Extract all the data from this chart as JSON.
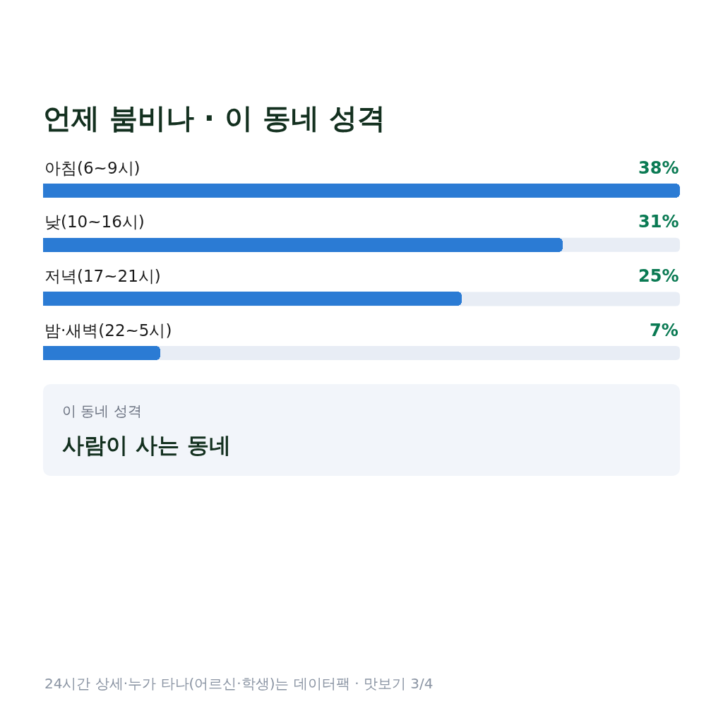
{
  "chart_data": {
    "type": "bar",
    "orientation": "horizontal",
    "title": "언제 붐비나 · 이 동네 성격",
    "categories": [
      "아침(6~9시)",
      "낮(10~16시)",
      "저녁(17~21시)",
      "밤·새벽(22~5시)"
    ],
    "series": [
      {
        "color": "#2b7bd4",
        "values": [
          38,
          31,
          25,
          7
        ],
        "value_labels": [
          "38%",
          "31%",
          "25%",
          "7%"
        ]
      }
    ],
    "xlim": [
      0,
      38
    ],
    "tick_labels": "y",
    "grid": false,
    "annotations": [
      "이 동네 성격",
      "사람이 사는 동네",
      "24시간 상세·누가 타나(어르신·학생)는 데이터팩 · 맛보기 3/4"
    ]
  }
}
